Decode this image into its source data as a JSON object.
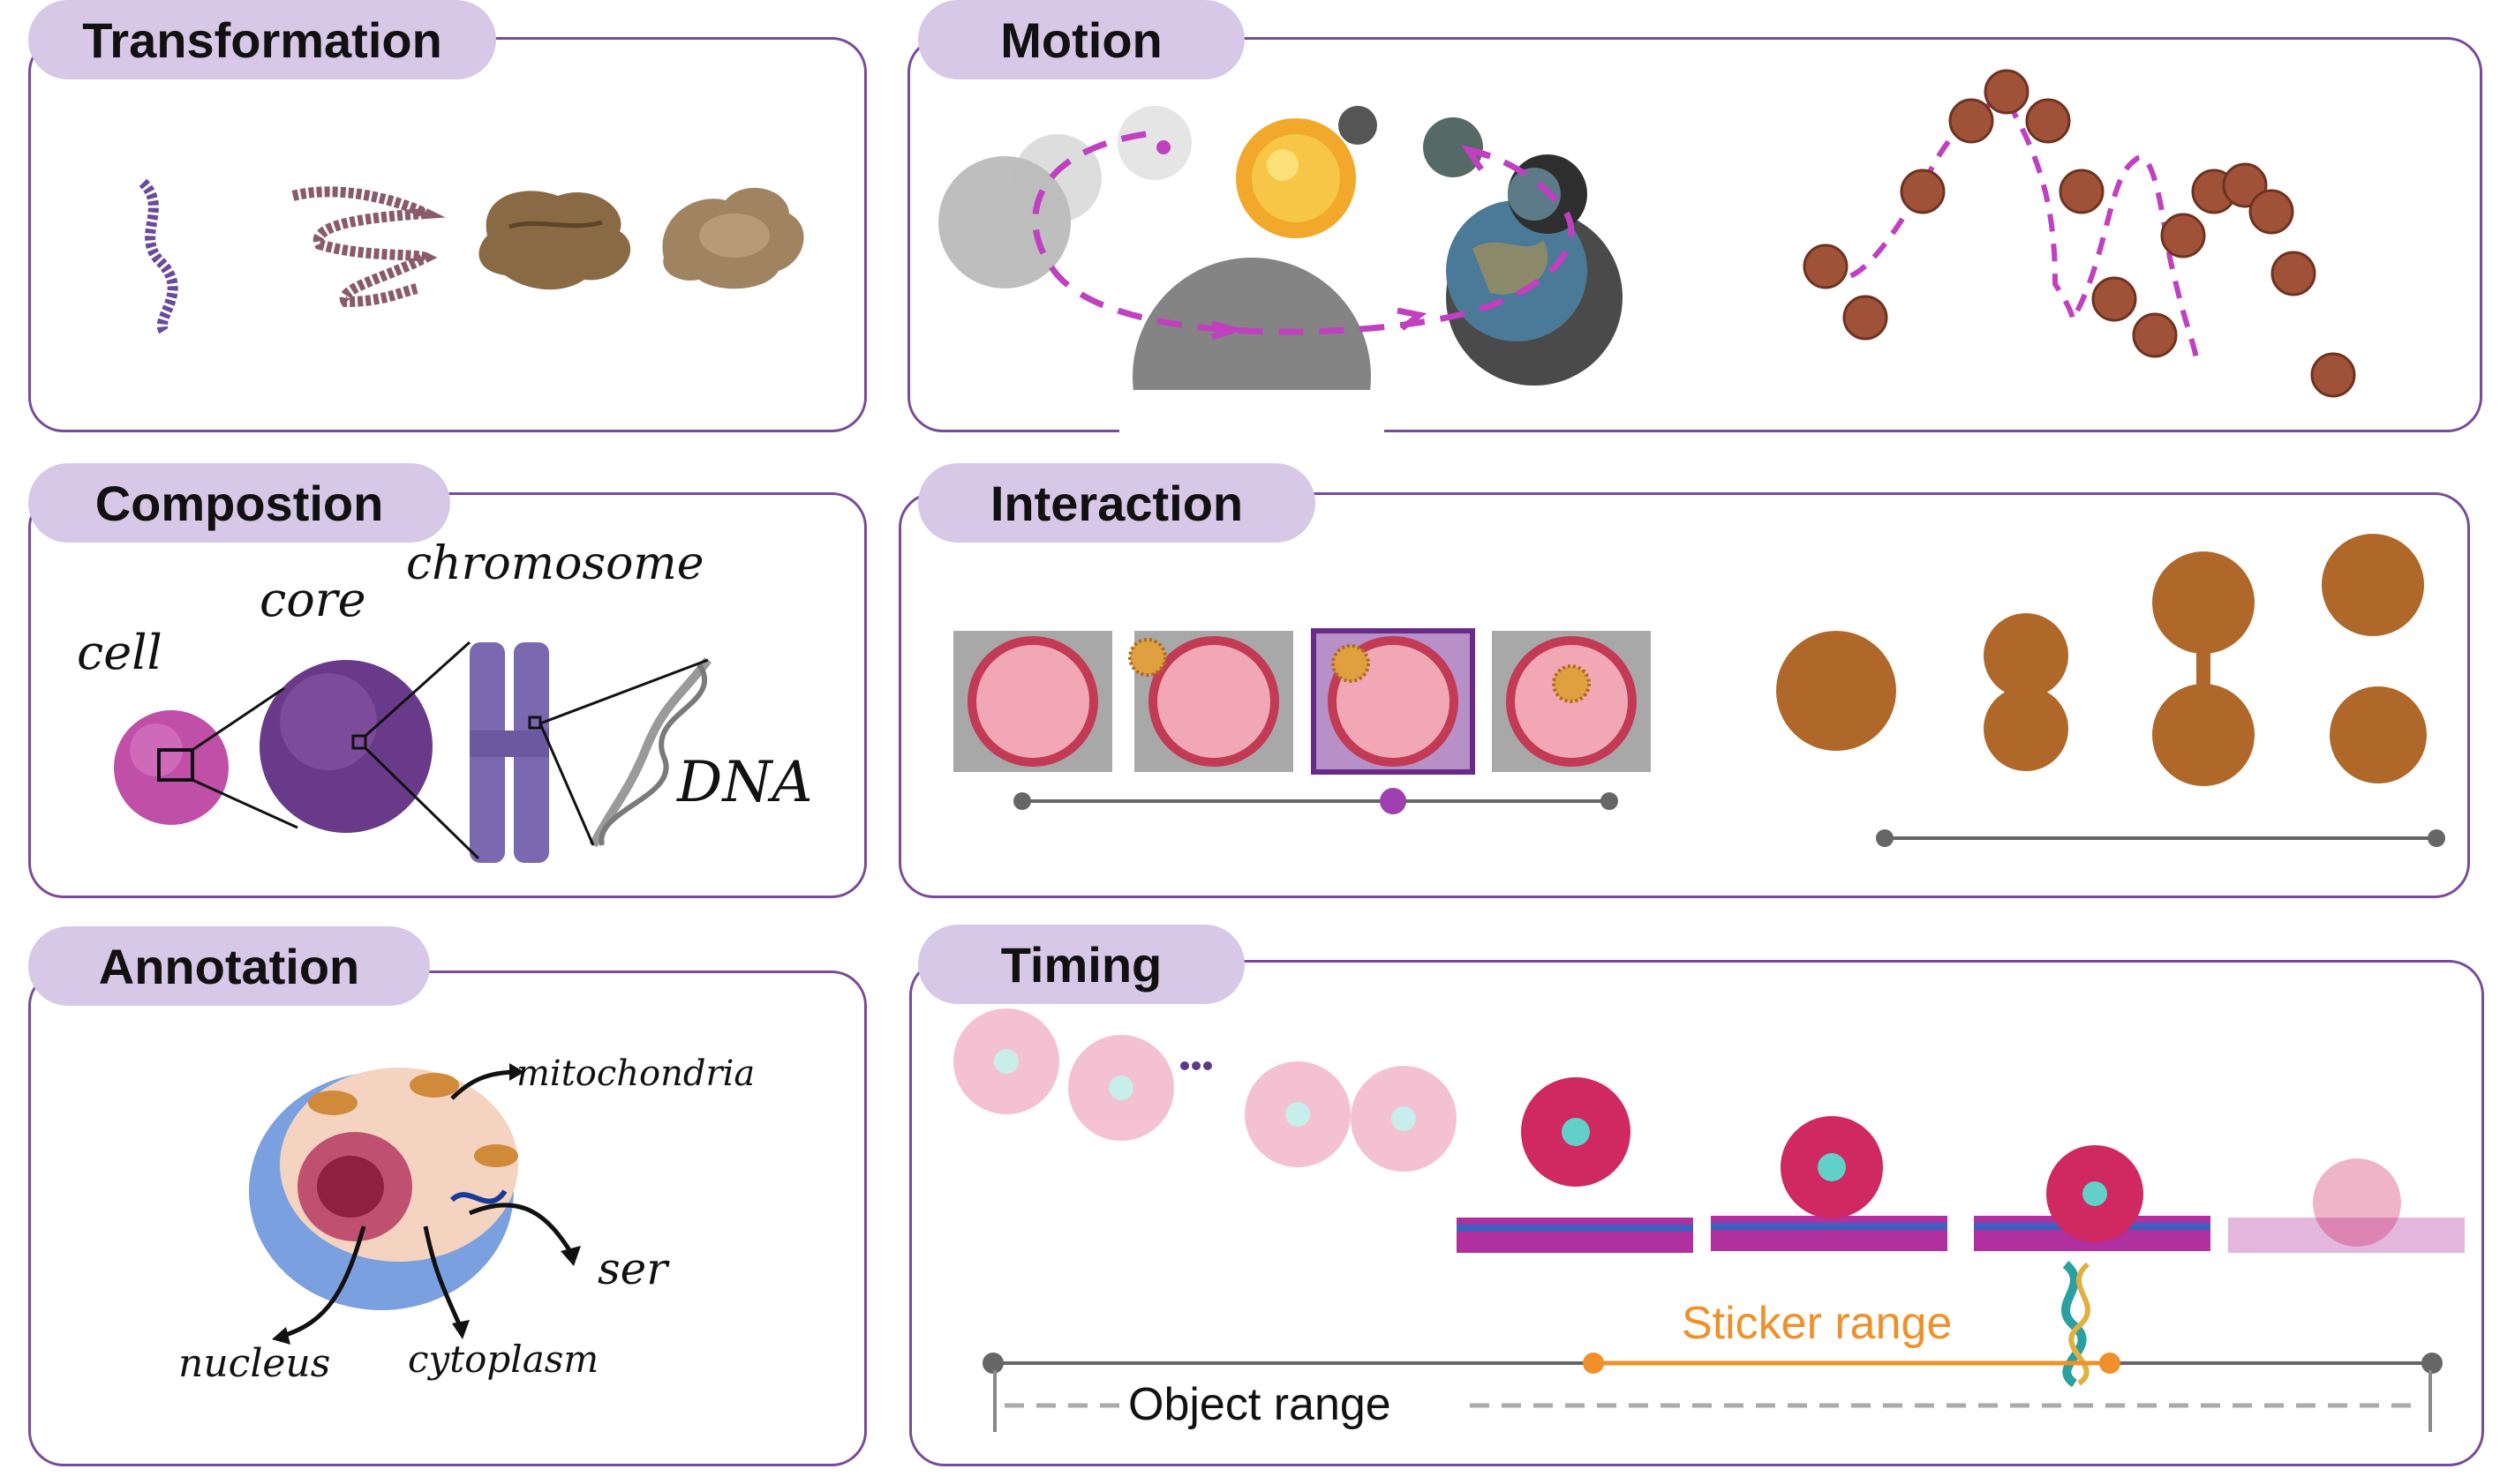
{
  "panels": {
    "transformation": {
      "title": "Transformation"
    },
    "motion": {
      "title": "Motion"
    },
    "composition": {
      "title": "Compostion",
      "labels": {
        "cell": "cell",
        "core": "core",
        "chromosome": "chromosome",
        "dna": "DNA"
      }
    },
    "interaction": {
      "title": "Interaction"
    },
    "annotation": {
      "title": "Annotation",
      "labels": {
        "mitochondria": "mitochondria",
        "ser": "ser",
        "nucleus": "nucleus",
        "cytoplasm": "cytoplasm"
      }
    },
    "timing": {
      "title": "Timing",
      "sticker_range": "Sticker range",
      "object_range": "Object range"
    }
  },
  "colors": {
    "panel_border": "#7a4a9a",
    "tab_fill": "#d8c8e8",
    "motion_path": "#c040c0",
    "sticker_orange": "#f0902a",
    "timeline_gray": "#666666",
    "slider_purple": "#a040b0"
  },
  "interaction_slider": {
    "frames": 4,
    "selected_frame": 3,
    "handle_fraction": 0.7
  }
}
